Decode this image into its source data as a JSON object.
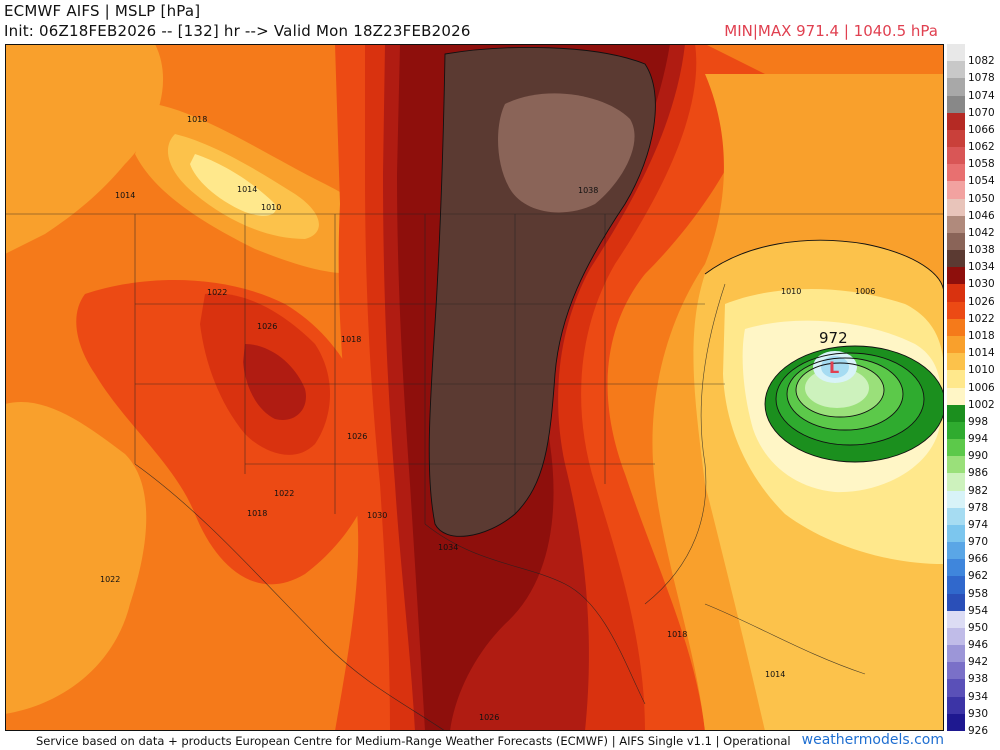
{
  "header": {
    "title": "ECMWF AIFS | MSLP [hPa]",
    "init_line": "Init: 06Z18FEB2026 -- [132] hr --> Valid Mon 18Z23FEB2026",
    "minmax": "MIN|MAX 971.4 | 1040.5 hPa"
  },
  "footer": {
    "credit": "Service based on data + products European Centre for Medium-Range Weather Forecasts (ECMWF) | AIFS Single v1.1 | Operational",
    "brand": "weathermodels.com"
  },
  "colors": {
    "c1038": "#5b3a32",
    "c1042": "#8a6458",
    "c1034": "#8e0f0c",
    "c1030": "#b01c12",
    "c1026": "#d9320f",
    "c1022": "#ec4a14",
    "c1018": "#f57a1a",
    "c1014": "#f9a02c",
    "c1010": "#fcc24b",
    "c1006": "#ffe88c",
    "c1002": "#fff6c6",
    "c998": "#1b8f1e",
    "c994": "#2fab2f",
    "c990": "#5cc94a",
    "c986": "#9ae07a",
    "c982": "#cdf2bd",
    "c978": "#d8f3f8",
    "c974": "#a6dcf2",
    "c970": "#7cc6ee",
    "low": "#e04050"
  },
  "map_labels": {
    "low_value": "972",
    "low_symbol": "L",
    "isobars": [
      "1018",
      "1014",
      "1014",
      "1010",
      "1022",
      "1026",
      "1018",
      "1026",
      "1022",
      "1018",
      "1022",
      "1030",
      "1034",
      "1038",
      "1010",
      "1006",
      "1018",
      "1014",
      "1026"
    ]
  },
  "scale": {
    "labels": [
      "1082",
      "1078",
      "1074",
      "1070",
      "1066",
      "1062",
      "1058",
      "1054",
      "1050",
      "1046",
      "1042",
      "1038",
      "1034",
      "1030",
      "1026",
      "1022",
      "1018",
      "1014",
      "1010",
      "1006",
      "1002",
      "998",
      "994",
      "990",
      "986",
      "982",
      "978",
      "974",
      "970",
      "966",
      "962",
      "958",
      "954",
      "950",
      "946",
      "942",
      "938",
      "934",
      "930",
      "926"
    ],
    "colors": [
      "#e8e8e8",
      "#c8c8c8",
      "#a8a8a8",
      "#888888",
      "#b52a24",
      "#c9403a",
      "#d95656",
      "#e87070",
      "#f2a2a0",
      "#e8c4ba",
      "#b08a7c",
      "#8a6458",
      "#5b3a32",
      "#8e0f0c",
      "#d9320f",
      "#ec4a14",
      "#f57a1a",
      "#f9a02c",
      "#fcc24b",
      "#ffe88c",
      "#fff6c6",
      "#1b8f1e",
      "#2fab2f",
      "#5cc94a",
      "#9ae07a",
      "#cdf2bd",
      "#d8f3f8",
      "#a6dcf2",
      "#7cc6ee",
      "#5aa6e6",
      "#3f86dc",
      "#3068cc",
      "#2a4fb8",
      "#dcdcf4",
      "#c0bce8",
      "#9c96d8",
      "#7a70c8",
      "#5a50b8",
      "#3c34a6",
      "#1e1890"
    ]
  }
}
